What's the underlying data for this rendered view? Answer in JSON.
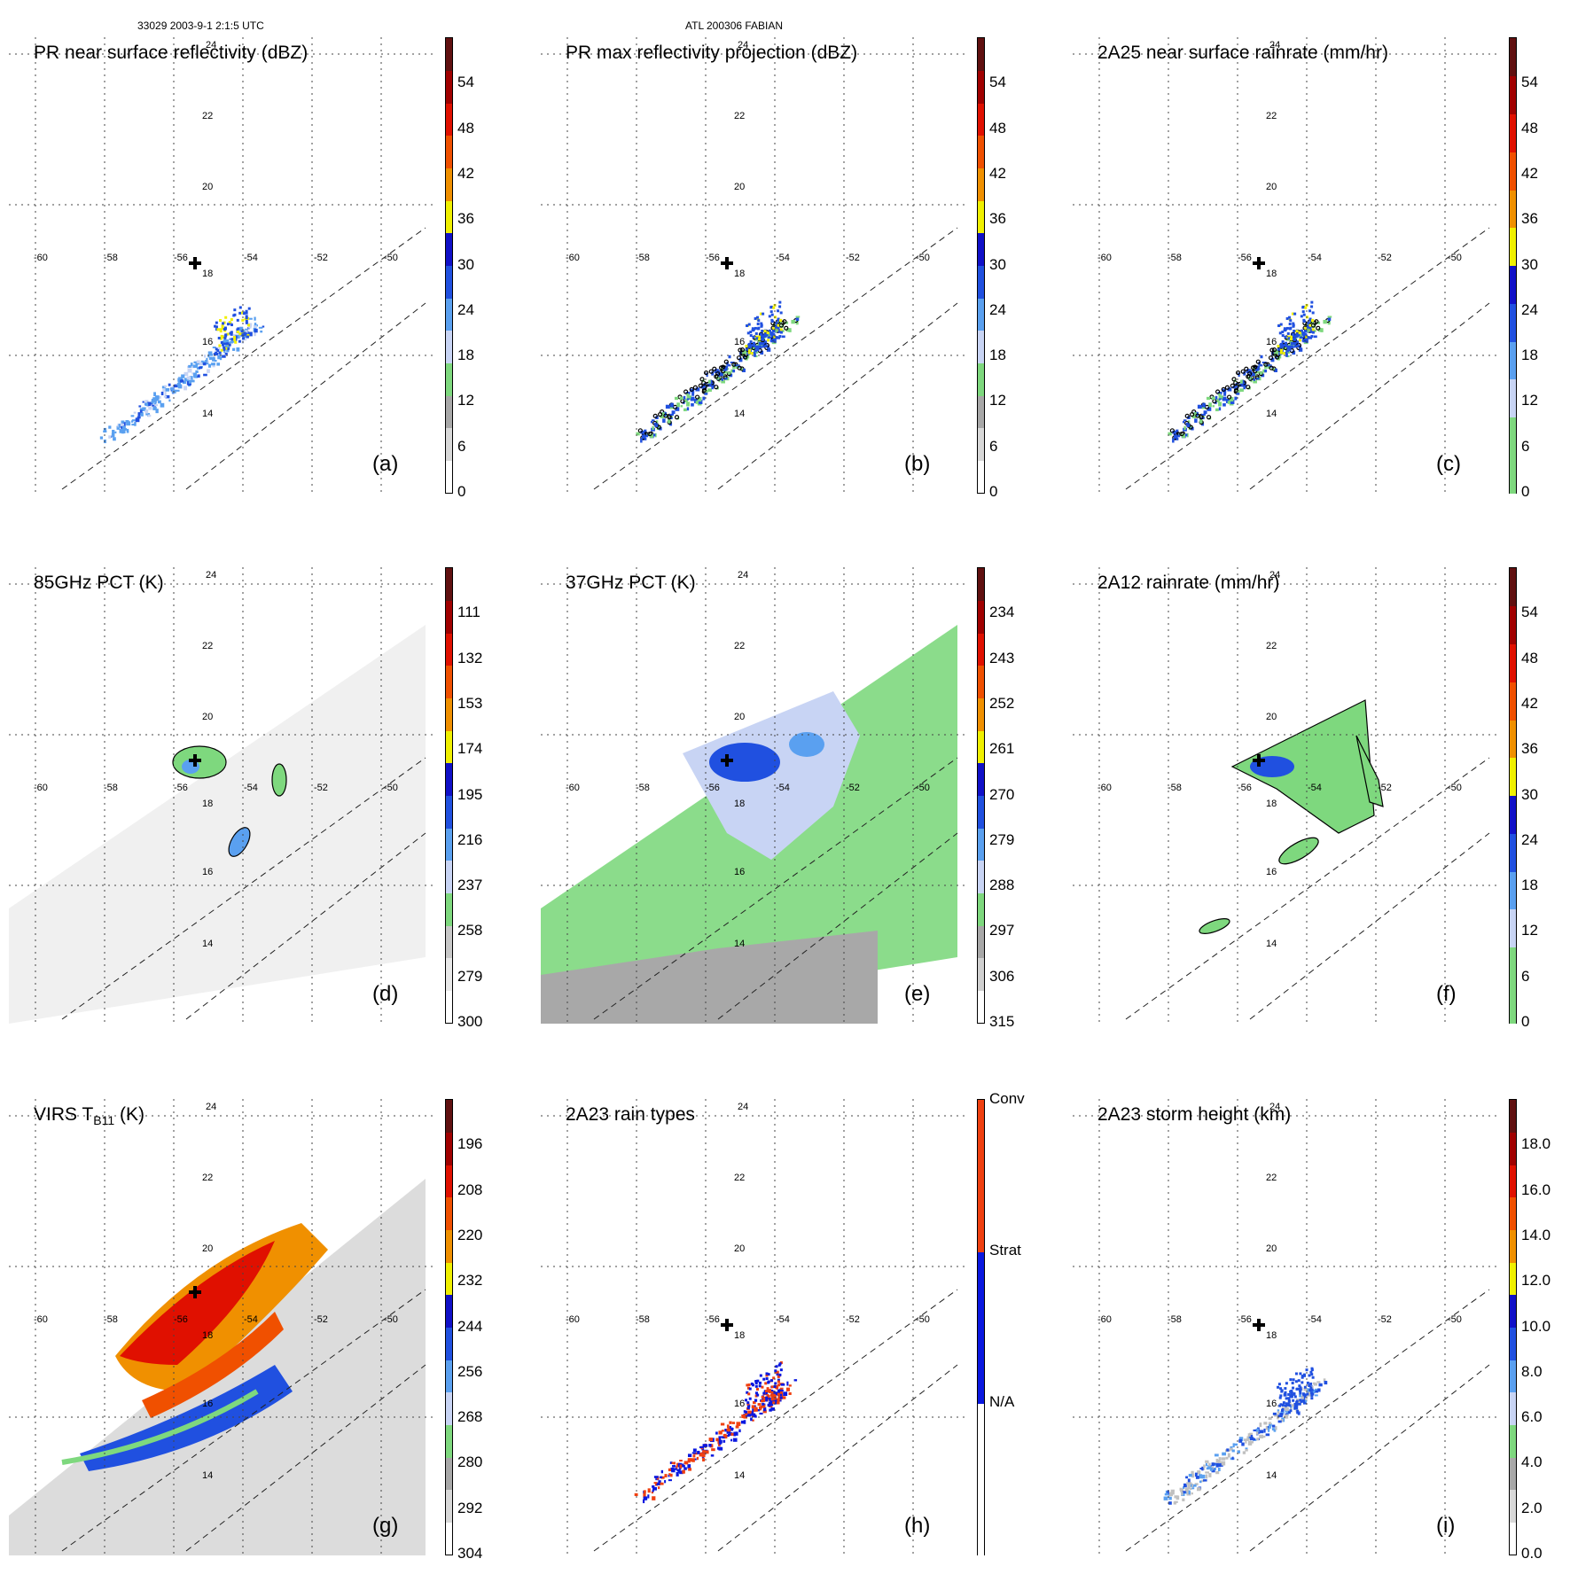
{
  "header": {
    "orbit_time": "33029 2003-9-1 2:1:5 UTC",
    "storm": "ATL 200306 FABIAN"
  },
  "grid": {
    "lon_labels": [
      "-60",
      "-58",
      "-56",
      "-54",
      "-52",
      "-50"
    ],
    "lat_labels": [
      "24",
      "22",
      "20",
      "18",
      "16",
      "14"
    ]
  },
  "panels": [
    {
      "id": "a",
      "title": "PR near surface reflectivity (dBZ)",
      "letter": "(a)",
      "field": "pr",
      "colors": [
        "#ffffff",
        "#d8d8d8",
        "#a8a8a8",
        "#7ed87e",
        "#c8d4f4",
        "#5aa0f0",
        "#2050e0",
        "#1010c8",
        "#f0f000",
        "#f09000",
        "#f05000",
        "#e01000",
        "#a00000",
        "#601010"
      ],
      "ticks": [
        "0",
        "6",
        "12",
        "18",
        "24",
        "30",
        "36",
        "42",
        "48",
        "54"
      ]
    },
    {
      "id": "b",
      "title": "PR max reflectivity projection (dBZ)",
      "letter": "(b)",
      "field": "pr_outline",
      "colors": [
        "#ffffff",
        "#d8d8d8",
        "#a8a8a8",
        "#7ed87e",
        "#c8d4f4",
        "#5aa0f0",
        "#2050e0",
        "#1010c8",
        "#f0f000",
        "#f09000",
        "#f05000",
        "#e01000",
        "#a00000",
        "#601010"
      ],
      "ticks": [
        "0",
        "6",
        "12",
        "18",
        "24",
        "30",
        "36",
        "42",
        "48",
        "54"
      ]
    },
    {
      "id": "c",
      "title": "2A25 near surface rainrate (mm/hr)",
      "letter": "(c)",
      "field": "pr_outline",
      "colors": [
        "#7ed87e",
        "#7ed87e",
        "#c8d4f4",
        "#5aa0f0",
        "#2050e0",
        "#1010c8",
        "#f0f000",
        "#f09000",
        "#f05000",
        "#e01000",
        "#a00000",
        "#601010"
      ],
      "ticks": [
        "0",
        "6",
        "12",
        "18",
        "24",
        "30",
        "36",
        "42",
        "48",
        "54"
      ]
    },
    {
      "id": "d",
      "title": "85GHz PCT (K)",
      "letter": "(d)",
      "field": "pct85",
      "colors": [
        "#ffffff",
        "#e8e8e8",
        "#c8c8c8",
        "#7ed87e",
        "#c8d4f4",
        "#5aa0f0",
        "#2050e0",
        "#1010c8",
        "#f0f000",
        "#f09000",
        "#f05000",
        "#e01000",
        "#a00000",
        "#601010"
      ],
      "ticks": [
        "300",
        "279",
        "258",
        "237",
        "216",
        "195",
        "174",
        "153",
        "132",
        "111"
      ]
    },
    {
      "id": "e",
      "title": "37GHz PCT (K)",
      "letter": "(e)",
      "field": "pct37",
      "colors": [
        "#ffffff",
        "#d0d0d0",
        "#a8a8a8",
        "#7ed87e",
        "#c8d4f4",
        "#5aa0f0",
        "#2050e0",
        "#1010c8",
        "#f0f000",
        "#f09000",
        "#f05000",
        "#e01000",
        "#a00000",
        "#601010"
      ],
      "ticks": [
        "315",
        "306",
        "297",
        "288",
        "279",
        "270",
        "261",
        "252",
        "243",
        "234"
      ]
    },
    {
      "id": "f",
      "title": "2A12 rainrate (mm/hr)",
      "letter": "(f)",
      "field": "rr12",
      "colors": [
        "#7ed87e",
        "#7ed87e",
        "#c8d4f4",
        "#5aa0f0",
        "#2050e0",
        "#1010c8",
        "#f0f000",
        "#f09000",
        "#f05000",
        "#e01000",
        "#a00000",
        "#601010"
      ],
      "ticks": [
        "0",
        "6",
        "12",
        "18",
        "24",
        "30",
        "36",
        "42",
        "48",
        "54"
      ]
    },
    {
      "id": "g",
      "title": "VIRS T",
      "title_sub": "B11",
      "title_tail": " (K)",
      "letter": "(g)",
      "field": "virs",
      "colors": [
        "#ffffff",
        "#d8d8d8",
        "#a8a8a8",
        "#7ed87e",
        "#c8d4f4",
        "#5aa0f0",
        "#2050e0",
        "#1010c8",
        "#f0f000",
        "#f09000",
        "#f05000",
        "#e01000",
        "#a00000",
        "#601010"
      ],
      "ticks": [
        "304",
        "292",
        "280",
        "268",
        "256",
        "244",
        "232",
        "220",
        "208",
        "196"
      ]
    },
    {
      "id": "h",
      "title": "2A23 rain types",
      "letter": "(h)",
      "field": "raintype",
      "colors": [
        "#ffffff",
        "#0a18e0",
        "#f04010"
      ],
      "ticks": [
        "N/A",
        "Strat",
        "Conv"
      ]
    },
    {
      "id": "i",
      "title": "2A23 storm height (km)",
      "letter": "(i)",
      "field": "height",
      "colors": [
        "#ffffff",
        "#d8d8d8",
        "#a8a8a8",
        "#7ed87e",
        "#c8d4f4",
        "#5aa0f0",
        "#2050e0",
        "#1010c8",
        "#f0f000",
        "#f09000",
        "#f05000",
        "#e01000",
        "#a00000",
        "#601010"
      ],
      "ticks": [
        "0.0",
        "2.0",
        "4.0",
        "6.0",
        "8.0",
        "10.0",
        "12.0",
        "14.0",
        "16.0",
        "18.0"
      ]
    }
  ]
}
